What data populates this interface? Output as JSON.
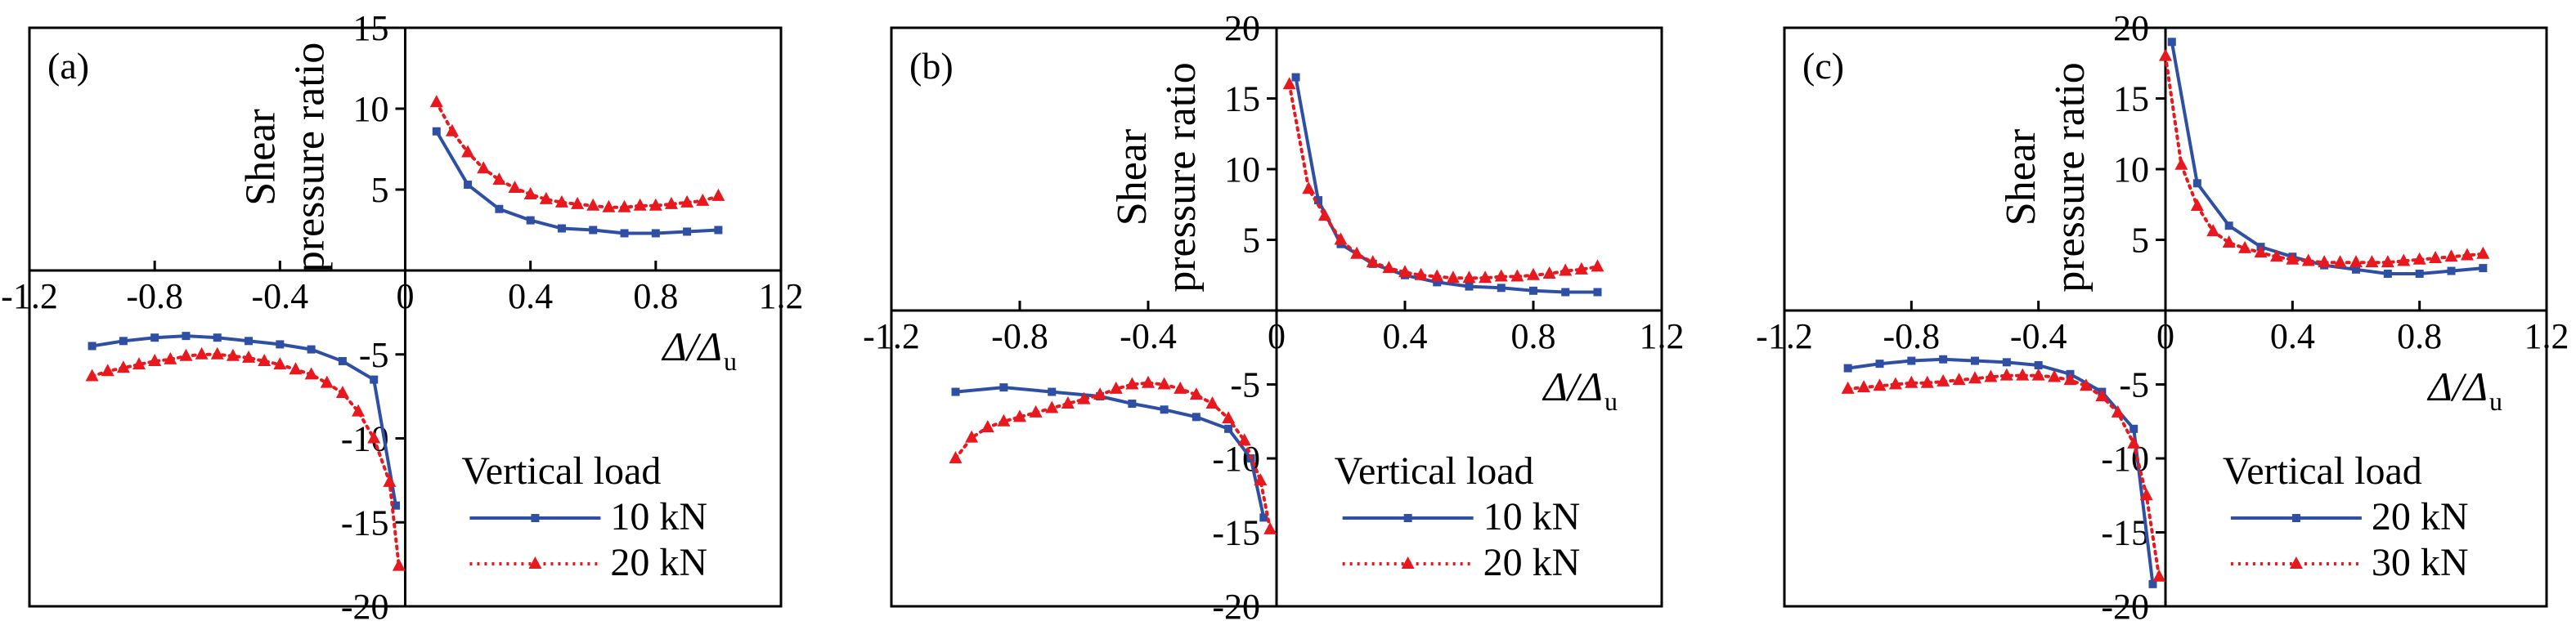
{
  "colors": {
    "series1": "#2e4fa3",
    "series2": "#e8181f"
  },
  "chart_data": [
    {
      "type": "line",
      "panel_label": "(a)",
      "ylabel_line1": "Shear",
      "ylabel_line2": "pressure ratio",
      "xlabel_main": "Δ/Δ",
      "xlabel_sub": "u",
      "xlim": [
        -1.2,
        1.2
      ],
      "ylim": [
        -20,
        15
      ],
      "x_ticks": [
        -1.2,
        -0.8,
        -0.4,
        0,
        0.4,
        0.8,
        1.2
      ],
      "x_tick_labels": [
        "-1.2",
        "-0.8",
        "-0.4",
        "0",
        "0.4",
        "0.8",
        "1.2"
      ],
      "y_ticks": [
        -20,
        -15,
        -10,
        -5,
        0,
        5,
        10,
        15
      ],
      "y_tick_labels": [
        "-20",
        "-15",
        "-10",
        "-5",
        "",
        "5",
        "10",
        "15"
      ],
      "legend_title": "Vertical load",
      "legend_position": "bottom-right",
      "series": [
        {
          "name": "10 kN",
          "color": "#2e4fa3",
          "marker": "square",
          "dash": "solid",
          "x": [
            -1.0,
            -0.9,
            -0.8,
            -0.7,
            -0.6,
            -0.5,
            -0.4,
            -0.3,
            -0.2,
            -0.1,
            -0.03,
            0.1,
            0.2,
            0.3,
            0.4,
            0.5,
            0.6,
            0.7,
            0.8,
            0.9,
            1.0
          ],
          "y": [
            -4.5,
            -4.2,
            -4.0,
            -3.9,
            -4.0,
            -4.2,
            -4.4,
            -4.7,
            -5.4,
            -6.5,
            -14.0,
            8.6,
            5.3,
            3.8,
            3.1,
            2.6,
            2.5,
            2.3,
            2.3,
            2.4,
            2.5
          ]
        },
        {
          "name": "20 kN",
          "color": "#e8181f",
          "marker": "triangle",
          "dash": "dotted",
          "x": [
            -1.0,
            -0.95,
            -0.9,
            -0.85,
            -0.8,
            -0.75,
            -0.7,
            -0.65,
            -0.6,
            -0.55,
            -0.5,
            -0.45,
            -0.4,
            -0.35,
            -0.3,
            -0.25,
            -0.2,
            -0.15,
            -0.1,
            -0.05,
            -0.02,
            0.1,
            0.15,
            0.2,
            0.25,
            0.3,
            0.35,
            0.4,
            0.45,
            0.5,
            0.55,
            0.6,
            0.65,
            0.7,
            0.75,
            0.8,
            0.85,
            0.9,
            0.95,
            1.0
          ],
          "y": [
            -6.3,
            -6.0,
            -5.8,
            -5.6,
            -5.4,
            -5.3,
            -5.1,
            -5.0,
            -5.0,
            -5.1,
            -5.2,
            -5.4,
            -5.6,
            -5.9,
            -6.2,
            -6.7,
            -7.3,
            -8.4,
            -10.0,
            -12.6,
            -17.6,
            10.4,
            8.6,
            7.3,
            6.3,
            5.6,
            5.1,
            4.7,
            4.4,
            4.2,
            4.1,
            4.0,
            3.9,
            3.9,
            4.0,
            4.0,
            4.1,
            4.2,
            4.3,
            4.6
          ]
        }
      ]
    },
    {
      "type": "line",
      "panel_label": "(b)",
      "ylabel_line1": "Shear",
      "ylabel_line2": "pressure ratio",
      "xlabel_main": "Δ/Δ",
      "xlabel_sub": "u",
      "xlim": [
        -1.2,
        1.2
      ],
      "ylim": [
        -20,
        20
      ],
      "x_ticks": [
        -1.2,
        -0.8,
        -0.4,
        0,
        0.4,
        0.8,
        1.2
      ],
      "x_tick_labels": [
        "-1.2",
        "-0.8",
        "-0.4",
        "0",
        "0.4",
        "0.8",
        "1.2"
      ],
      "y_ticks": [
        -20,
        -15,
        -10,
        -5,
        0,
        5,
        10,
        15,
        20
      ],
      "y_tick_labels": [
        "-20",
        "-15",
        "-10",
        "-5",
        "",
        "5",
        "10",
        "15",
        "20"
      ],
      "legend_title": "Vertical load",
      "legend_position": "bottom-right",
      "series": [
        {
          "name": "10 kN",
          "color": "#2e4fa3",
          "marker": "square",
          "dash": "solid",
          "x": [
            -1.0,
            -0.85,
            -0.7,
            -0.55,
            -0.45,
            -0.35,
            -0.25,
            -0.15,
            -0.08,
            -0.04,
            0.06,
            0.13,
            0.2,
            0.3,
            0.4,
            0.5,
            0.6,
            0.7,
            0.8,
            0.9,
            1.0
          ],
          "y": [
            -5.5,
            -5.2,
            -5.5,
            -5.8,
            -6.3,
            -6.7,
            -7.2,
            -8.0,
            -10.0,
            -14.0,
            16.5,
            7.8,
            4.7,
            3.3,
            2.5,
            2.0,
            1.7,
            1.6,
            1.4,
            1.3,
            1.3
          ]
        },
        {
          "name": "20 kN",
          "color": "#e8181f",
          "marker": "triangle",
          "dash": "dotted",
          "x": [
            -1.0,
            -0.95,
            -0.9,
            -0.85,
            -0.8,
            -0.75,
            -0.7,
            -0.65,
            -0.6,
            -0.55,
            -0.5,
            -0.45,
            -0.4,
            -0.35,
            -0.3,
            -0.25,
            -0.2,
            -0.15,
            -0.1,
            -0.05,
            -0.02,
            0.04,
            0.1,
            0.15,
            0.2,
            0.25,
            0.3,
            0.35,
            0.4,
            0.45,
            0.5,
            0.55,
            0.6,
            0.65,
            0.7,
            0.75,
            0.8,
            0.85,
            0.9,
            0.95,
            1.0
          ],
          "y": [
            -10.0,
            -8.6,
            -7.9,
            -7.5,
            -7.2,
            -6.9,
            -6.6,
            -6.3,
            -6.0,
            -5.7,
            -5.3,
            -5.0,
            -4.9,
            -5.0,
            -5.3,
            -5.7,
            -6.3,
            -7.3,
            -8.8,
            -11.5,
            -14.8,
            16.0,
            8.6,
            6.7,
            5.0,
            4.0,
            3.4,
            3.0,
            2.7,
            2.5,
            2.4,
            2.3,
            2.3,
            2.3,
            2.4,
            2.4,
            2.5,
            2.6,
            2.8,
            2.9,
            3.1
          ]
        }
      ]
    },
    {
      "type": "line",
      "panel_label": "(c)",
      "ylabel_line1": "Shear",
      "ylabel_line2": "pressure ratio",
      "xlabel_main": "Δ/Δ",
      "xlabel_sub": "u",
      "xlim": [
        -1.2,
        1.2
      ],
      "ylim": [
        -20,
        20
      ],
      "x_ticks": [
        -1.2,
        -0.8,
        -0.4,
        0,
        0.4,
        0.8,
        1.2
      ],
      "x_tick_labels": [
        "-1.2",
        "-0.8",
        "-0.4",
        "0",
        "0.4",
        "0.8",
        "1.2"
      ],
      "y_ticks": [
        -20,
        -15,
        -10,
        -5,
        0,
        5,
        10,
        15,
        20
      ],
      "y_tick_labels": [
        "-20",
        "-15",
        "-10",
        "-5",
        "",
        "5",
        "10",
        "15",
        "20"
      ],
      "legend_title": "Vertical load",
      "legend_position": "bottom-right",
      "series": [
        {
          "name": "20 kN",
          "color": "#2e4fa3",
          "marker": "square",
          "dash": "solid",
          "x": [
            -1.0,
            -0.9,
            -0.8,
            -0.7,
            -0.6,
            -0.5,
            -0.4,
            -0.3,
            -0.2,
            -0.1,
            -0.04,
            0.02,
            0.1,
            0.2,
            0.3,
            0.4,
            0.5,
            0.6,
            0.7,
            0.8,
            0.9,
            1.0
          ],
          "y": [
            -3.9,
            -3.6,
            -3.4,
            -3.3,
            -3.4,
            -3.5,
            -3.7,
            -4.3,
            -5.5,
            -8.0,
            -18.5,
            19.0,
            9.0,
            6.0,
            4.5,
            3.8,
            3.2,
            2.9,
            2.6,
            2.6,
            2.8,
            3.0
          ]
        },
        {
          "name": "30 kN",
          "color": "#e8181f",
          "marker": "triangle",
          "dash": "dotted",
          "x": [
            -1.0,
            -0.95,
            -0.9,
            -0.85,
            -0.8,
            -0.75,
            -0.7,
            -0.65,
            -0.6,
            -0.55,
            -0.5,
            -0.45,
            -0.4,
            -0.35,
            -0.3,
            -0.25,
            -0.2,
            -0.15,
            -0.1,
            -0.06,
            -0.02,
            0.0,
            0.05,
            0.1,
            0.15,
            0.2,
            0.25,
            0.3,
            0.35,
            0.4,
            0.45,
            0.5,
            0.55,
            0.6,
            0.65,
            0.7,
            0.75,
            0.8,
            0.85,
            0.9,
            0.95,
            1.0
          ],
          "y": [
            -5.3,
            -5.2,
            -5.1,
            -5.0,
            -4.9,
            -4.9,
            -4.8,
            -4.7,
            -4.6,
            -4.5,
            -4.4,
            -4.4,
            -4.4,
            -4.5,
            -4.7,
            -5.1,
            -5.8,
            -6.9,
            -9.0,
            -12.5,
            -18.0,
            18.0,
            10.3,
            7.4,
            5.6,
            4.8,
            4.4,
            4.1,
            3.8,
            3.6,
            3.5,
            3.4,
            3.4,
            3.4,
            3.4,
            3.4,
            3.5,
            3.6,
            3.7,
            3.8,
            3.9,
            4.0
          ]
        }
      ]
    }
  ]
}
